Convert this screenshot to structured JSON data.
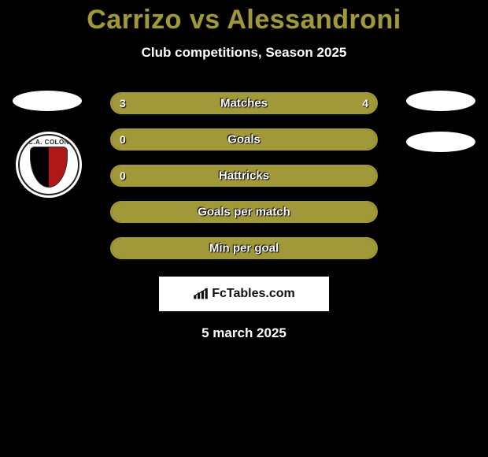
{
  "title": {
    "left_player": "Carrizo",
    "vs": "vs",
    "right_player": "Alessandroni"
  },
  "subtitle": "Club competitions, Season 2025",
  "accent_color": "#a1983a",
  "team_badge": {
    "text": "C.A. COLON",
    "left_color": "#000000",
    "right_color": "#b01818"
  },
  "bars": [
    {
      "label": "Matches",
      "left_value": "3",
      "right_value": "4",
      "left_width_pct": 40,
      "right_width_pct": 60,
      "show_left": true,
      "show_right": true
    },
    {
      "label": "Goals",
      "left_value": "0",
      "right_value": "",
      "left_width_pct": 100,
      "right_width_pct": 0,
      "show_left": true,
      "show_right": false
    },
    {
      "label": "Hattricks",
      "left_value": "0",
      "right_value": "",
      "left_width_pct": 100,
      "right_width_pct": 0,
      "show_left": true,
      "show_right": false
    },
    {
      "label": "Goals per match",
      "left_value": "",
      "right_value": "",
      "left_width_pct": 100,
      "right_width_pct": 0,
      "show_left": false,
      "show_right": false
    },
    {
      "label": "Min per goal",
      "left_value": "",
      "right_value": "",
      "left_width_pct": 100,
      "right_width_pct": 0,
      "show_left": false,
      "show_right": false
    }
  ],
  "site_badge": "FcTables.com",
  "date": "5 march 2025",
  "colors": {
    "background": "#000000",
    "bar_border": "#a1983a",
    "bar_fill": "#a1983a",
    "text_light": "#ffffff"
  }
}
